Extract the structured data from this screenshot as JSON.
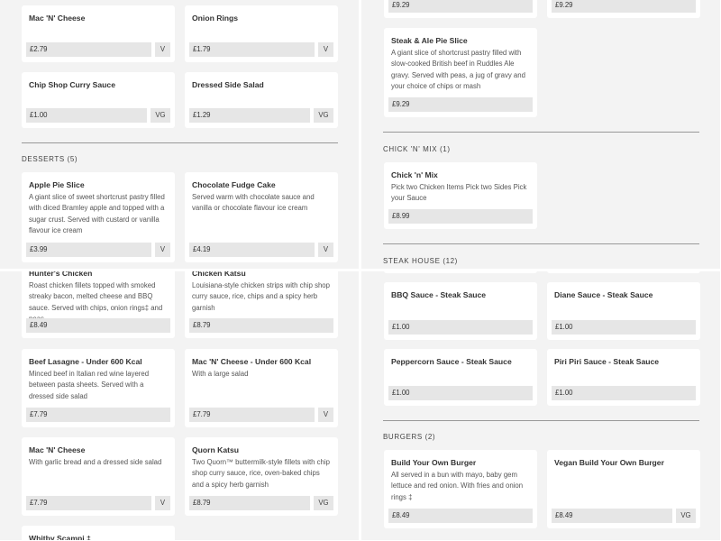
{
  "quadrants": [
    {
      "items": [
        {
          "title": "Mac 'N' Cheese",
          "price": "£2.79",
          "tag": "V"
        },
        {
          "title": "Onion Rings",
          "price": "£1.79",
          "tag": "V"
        },
        {
          "title": "Chip Shop Curry Sauce",
          "price": "£1.00",
          "tag": "VG"
        },
        {
          "title": "Dressed Side Salad",
          "price": "£1.29",
          "tag": "VG"
        },
        {
          "title": "Apple Pie Slice",
          "desc": "A giant slice of sweet shortcrust pastry filled with diced Bramley apple and topped with a sugar crust. Served with custard or vanilla flavour ice cream",
          "price": "£3.99",
          "tag": "V"
        },
        {
          "title": "Chocolate Fudge Cake",
          "desc": "Served warm with chocolate sauce and vanilla or chocolate flavour ice cream",
          "price": "£4.19",
          "tag": "V"
        }
      ],
      "headings": [
        "DESSERTS (5)"
      ]
    },
    {
      "items": [
        {
          "price": "£9.29"
        },
        {
          "price": "£9.29"
        },
        {
          "title": "Steak & Ale Pie Slice",
          "desc": "A giant slice of shortcrust pastry filled with slow-cooked British beef in Ruddles Ale gravy. Served with peas, a jug of gravy and your choice of chips or mash",
          "price": "£9.29"
        },
        {
          "title": "Chick 'n' Mix",
          "desc": "Pick two Chicken Items Pick two Sides Pick your Sauce",
          "price": "£8.99"
        }
      ],
      "headings": [
        "CHICK 'N' MIX (1)",
        "STEAK HOUSE (12)"
      ]
    },
    {
      "items": [
        {
          "title": "Hunter's Chicken",
          "desc": "Roast chicken fillets topped with smoked streaky bacon, melted cheese and BBQ sauce. Served with chips, onion rings‡ and peas.",
          "price": "£8.49"
        },
        {
          "title": "Chicken Katsu",
          "desc": "Louisiana-style chicken strips with chip shop curry sauce, rice, chips and a spicy herb garnish",
          "price": "£8.79"
        },
        {
          "title": "Beef Lasagne - Under 600 Kcal",
          "desc": "Minced beef in Italian red wine layered between pasta sheets. Served with a dressed side salad",
          "price": "£7.79"
        },
        {
          "title": "Mac 'N' Cheese - Under 600 Kcal",
          "desc": "With a large salad",
          "price": "£7.79",
          "tag": "V"
        },
        {
          "title": "Mac 'N' Cheese",
          "desc": "With garlic bread and a dressed side salad",
          "price": "£7.79",
          "tag": "V"
        },
        {
          "title": "Quorn Katsu",
          "desc": "Two Quorn™ buttermilk-style fillets with chip shop curry sauce, rice, oven-baked chips and a spicy herb garnish",
          "price": "£8.79",
          "tag": "VG"
        },
        {
          "title": "Whitby Scampi ‡"
        }
      ],
      "headings": []
    },
    {
      "items": [
        {},
        {},
        {
          "title": "BBQ Sauce - Steak Sauce",
          "price": "£1.00"
        },
        {
          "title": "Diane Sauce - Steak Sauce",
          "price": "£1.00"
        },
        {
          "title": "Peppercorn Sauce - Steak Sauce",
          "price": "£1.00"
        },
        {
          "title": "Piri Piri Sauce - Steak Sauce",
          "price": "£1.00"
        },
        {
          "title": "Build Your Own Burger",
          "desc": "All served in a bun with mayo, baby gem lettuce and red onion. With fries and onion rings ‡",
          "price": "£8.49"
        },
        {
          "title": "Vegan Build Your Own Burger",
          "price": "£8.49",
          "tag": "VG"
        }
      ],
      "headings": [
        "BURGERS (2)"
      ]
    }
  ]
}
